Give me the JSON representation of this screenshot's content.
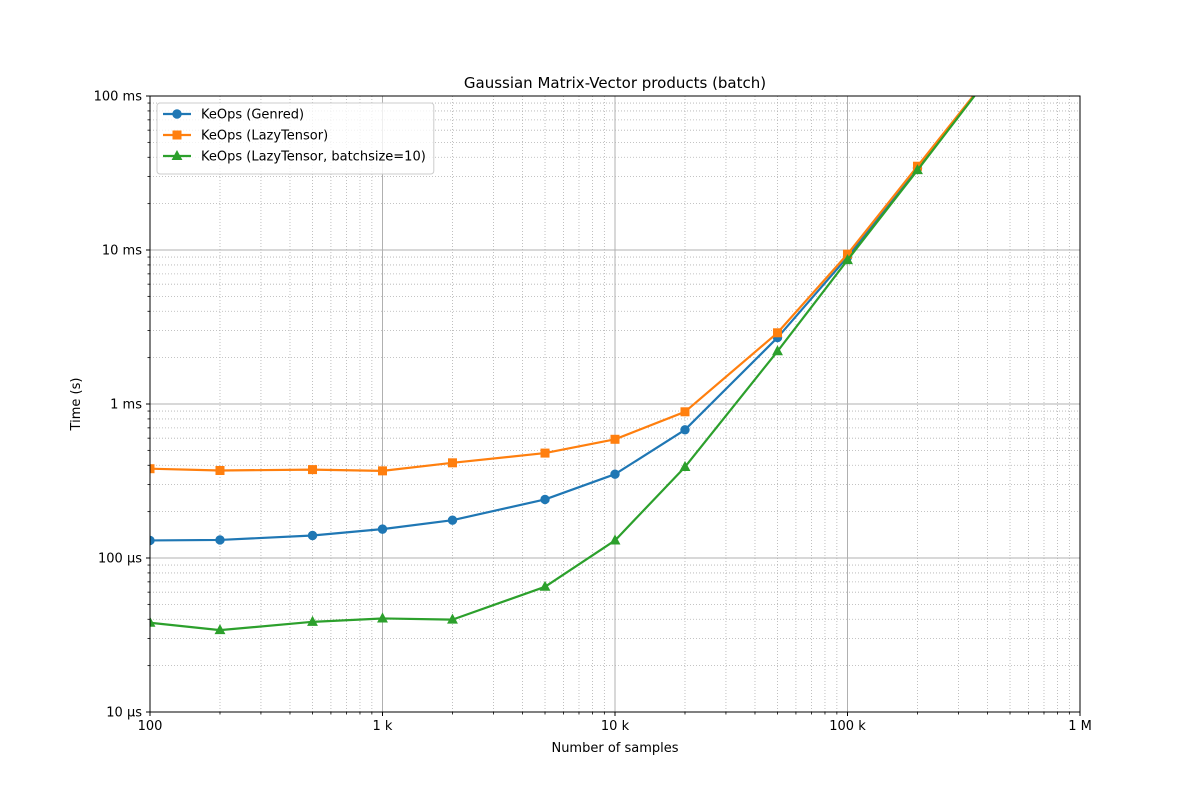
{
  "chart_data": {
    "type": "line",
    "title": "Gaussian Matrix-Vector products (batch)",
    "xlabel": "Number of samples",
    "ylabel": "Time (s)",
    "xscale": "log",
    "yscale": "log",
    "xlim": [
      100,
      1000000
    ],
    "ylim": [
      1e-05,
      0.1
    ],
    "x_ticks": [
      {
        "value": 100,
        "label": "100"
      },
      {
        "value": 1000,
        "label": "1 k"
      },
      {
        "value": 10000,
        "label": "10 k"
      },
      {
        "value": 100000,
        "label": "100 k"
      },
      {
        "value": 1000000,
        "label": "1 M"
      }
    ],
    "y_ticks": [
      {
        "value": 1e-05,
        "label": "10 µs"
      },
      {
        "value": 0.0001,
        "label": "100 µs"
      },
      {
        "value": 0.001,
        "label": "1 ms"
      },
      {
        "value": 0.01,
        "label": "10 ms"
      },
      {
        "value": 0.1,
        "label": "100 ms"
      }
    ],
    "grid": true,
    "legend_position": "top-left",
    "series": [
      {
        "name": "KeOps (Genred)",
        "color": "#1f77b4",
        "marker": "circle",
        "x": [
          100,
          200,
          500,
          1000,
          2000,
          5000,
          10000,
          20000,
          50000,
          100000,
          200000,
          500000
        ],
        "y": [
          0.00013,
          0.000131,
          0.00014,
          0.000154,
          0.000176,
          0.00024,
          0.00035,
          0.00068,
          0.0027,
          0.009,
          0.034,
          0.2
        ]
      },
      {
        "name": "KeOps (LazyTensor)",
        "color": "#ff7f0e",
        "marker": "square",
        "x": [
          100,
          200,
          500,
          1000,
          2000,
          5000,
          10000,
          20000,
          50000,
          100000,
          200000,
          500000
        ],
        "y": [
          0.00038,
          0.00037,
          0.000375,
          0.000368,
          0.000415,
          0.00048,
          0.00059,
          0.00089,
          0.0029,
          0.0094,
          0.035,
          0.2
        ]
      },
      {
        "name": "KeOps (LazyTensor, batchsize=10)",
        "color": "#2ca02c",
        "marker": "triangle",
        "x": [
          100,
          200,
          500,
          1000,
          2000,
          5000,
          10000,
          20000,
          50000,
          100000,
          200000,
          500000
        ],
        "y": [
          3.8e-05,
          3.4e-05,
          3.85e-05,
          4.05e-05,
          3.98e-05,
          6.5e-05,
          0.00013,
          0.00039,
          0.0022,
          0.0086,
          0.033,
          0.2
        ]
      }
    ]
  }
}
